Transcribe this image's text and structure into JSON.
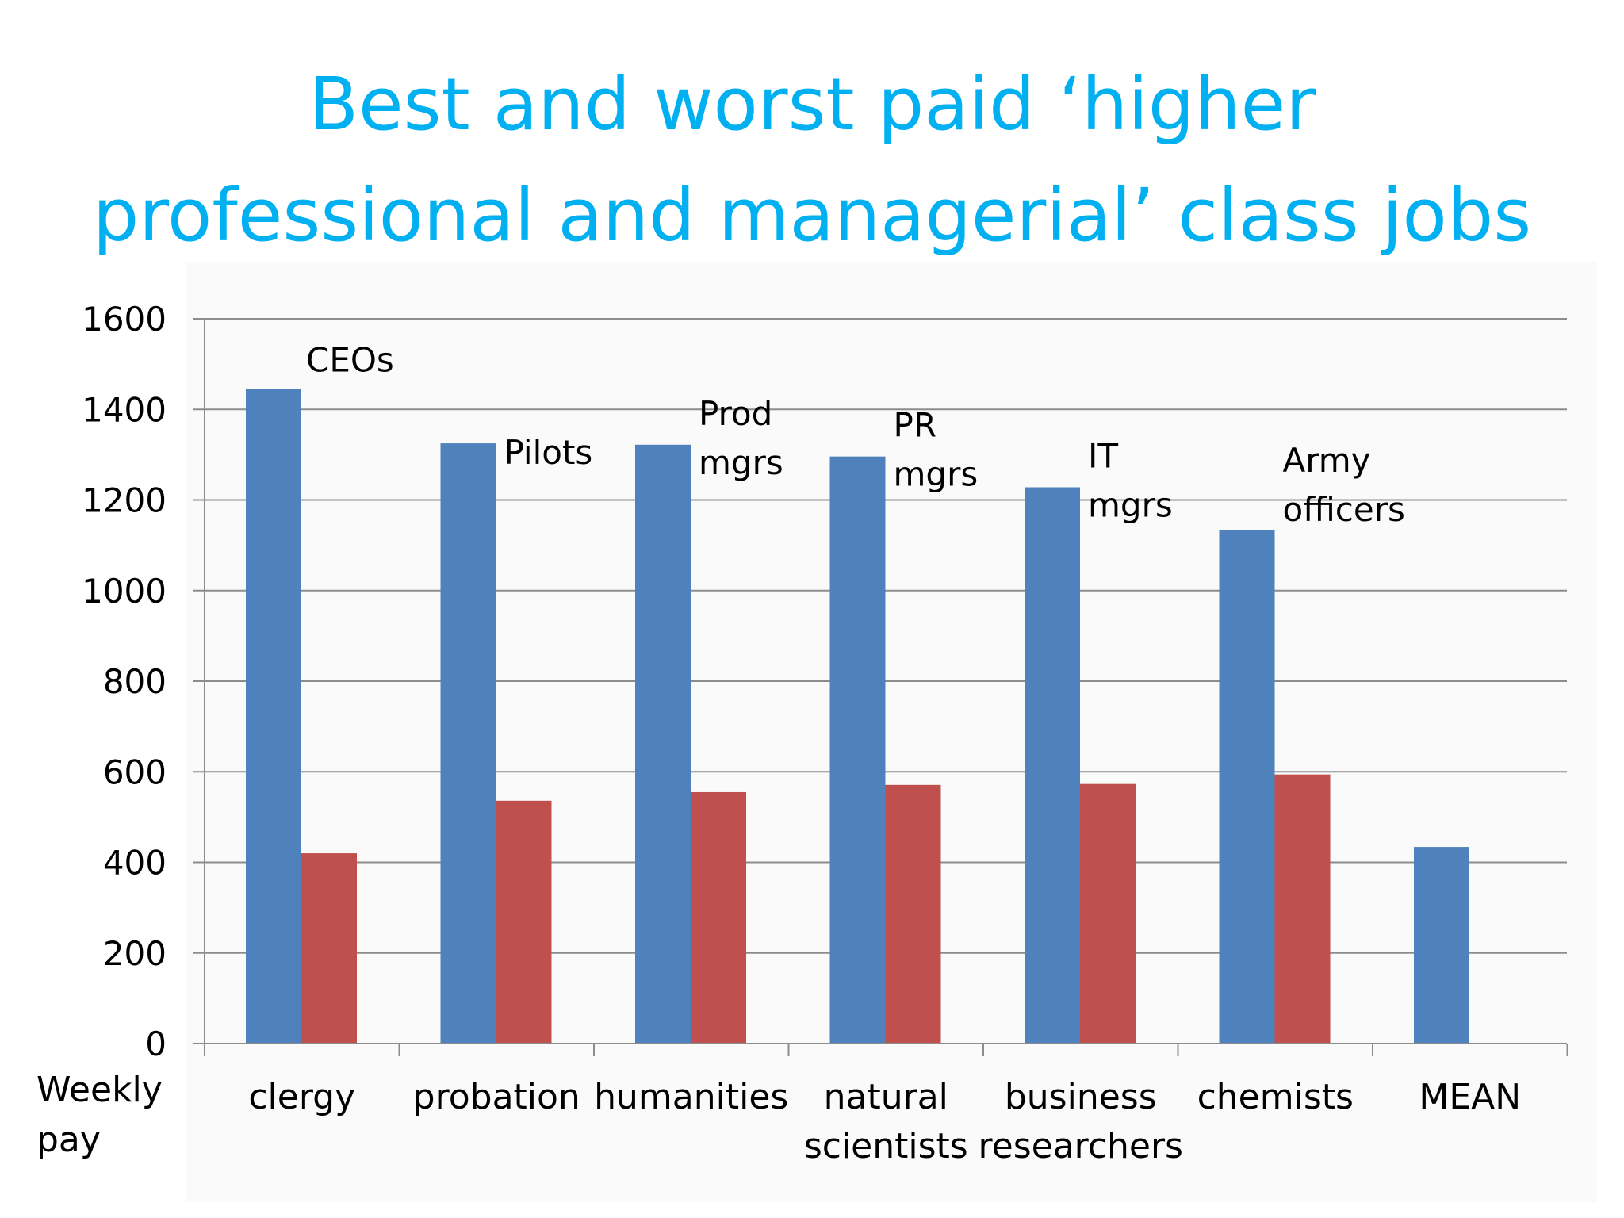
{
  "slide": {
    "title_lines": [
      "Best and worst paid ‘higher",
      "professional and managerial’ class jobs"
    ]
  },
  "chart_data": {
    "type": "bar",
    "title": "Best and worst paid ‘higher professional and managerial’ class jobs",
    "xlabel": "",
    "ylabel_lines": [
      "Weekly",
      "pay"
    ],
    "ylim": [
      0,
      1600
    ],
    "yticks": [
      0,
      200,
      400,
      600,
      800,
      1000,
      1200,
      1400,
      1600
    ],
    "grid": true,
    "categories": [
      [
        "clergy"
      ],
      [
        "probation"
      ],
      [
        "humanities"
      ],
      [
        "natural",
        "scientists"
      ],
      [
        "business",
        "researchers"
      ],
      [
        "chemists"
      ],
      [
        "MEAN"
      ]
    ],
    "series": [
      {
        "values": [
          1445,
          1325,
          1322,
          1296,
          1228,
          1133,
          434
        ],
        "color": "#4f81bd"
      },
      {
        "values": [
          420,
          536,
          555,
          571,
          573,
          594,
          null
        ],
        "color": "#c0504d"
      }
    ],
    "annotations": [
      {
        "category": 0,
        "lines": [
          "CEOs"
        ]
      },
      {
        "category": 1,
        "lines": [
          "Pilots"
        ]
      },
      {
        "category": 2,
        "lines": [
          "Prod",
          "mgrs"
        ]
      },
      {
        "category": 3,
        "lines": [
          "PR",
          "mgrs"
        ]
      },
      {
        "category": 4,
        "lines": [
          "IT",
          "mgrs"
        ]
      },
      {
        "category": 5,
        "lines": [
          "Army",
          "officers"
        ]
      }
    ]
  }
}
